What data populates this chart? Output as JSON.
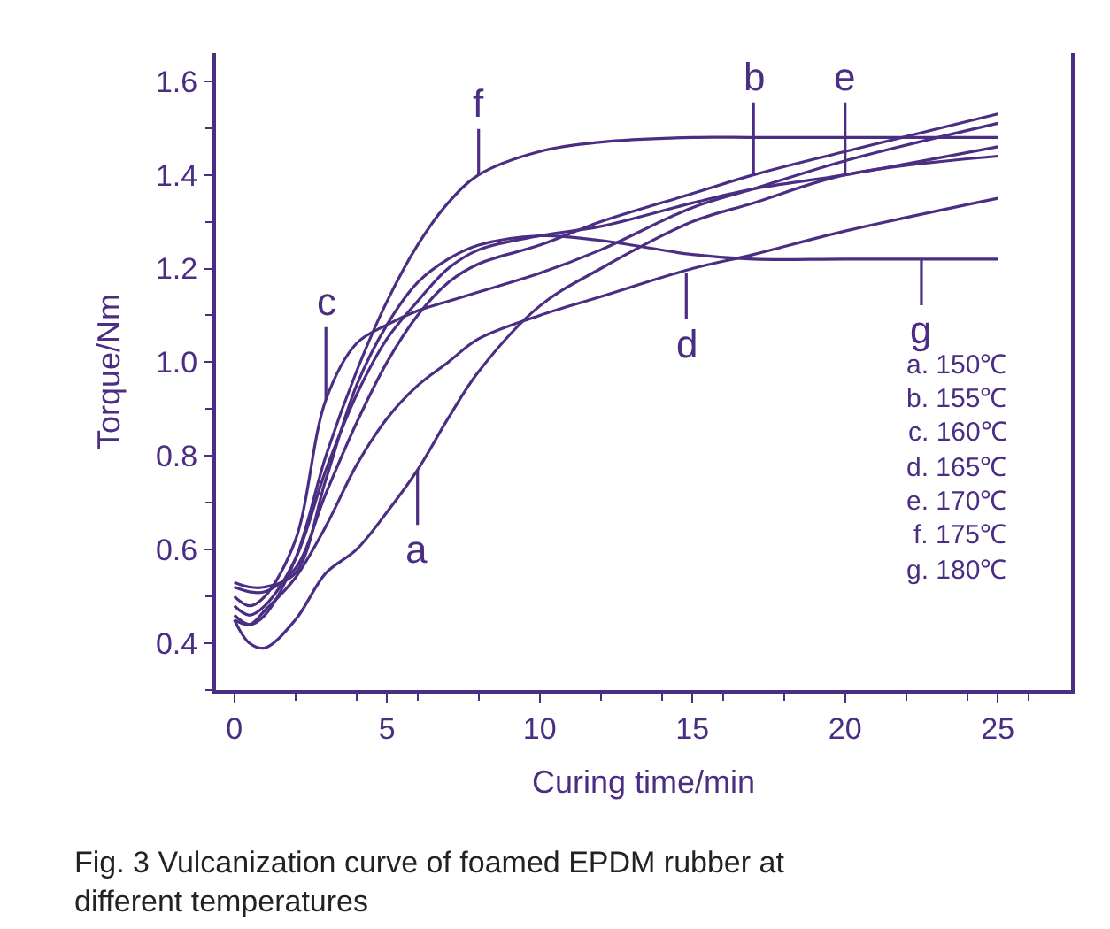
{
  "chart_data": {
    "type": "line",
    "xlabel": "Curing time/min",
    "ylabel": "Torque/Nm",
    "x": [
      0,
      0.5,
      1,
      2,
      3,
      4,
      5,
      6,
      7,
      8,
      10,
      12,
      15,
      17,
      20,
      25
    ],
    "series": [
      {
        "color": "#4b2e83",
        "values": [
          0.45,
          0.4,
          0.39,
          0.45,
          0.55,
          0.6,
          0.68,
          0.77,
          0.88,
          0.98,
          1.12,
          1.2,
          1.3,
          1.34,
          1.4,
          1.44
        ]
      },
      {
        "color": "#4b2e83",
        "values": [
          0.52,
          0.51,
          0.51,
          0.56,
          0.72,
          0.87,
          1.0,
          1.1,
          1.17,
          1.21,
          1.25,
          1.3,
          1.36,
          1.4,
          1.45,
          1.53
        ]
      },
      {
        "color": "#4b2e83",
        "values": [
          0.5,
          0.48,
          0.5,
          0.62,
          0.92,
          1.04,
          1.08,
          1.11,
          1.13,
          1.15,
          1.19,
          1.24,
          1.33,
          1.37,
          1.43,
          1.51
        ]
      },
      {
        "color": "#4b2e83",
        "values": [
          0.45,
          0.44,
          0.47,
          0.54,
          0.65,
          0.78,
          0.88,
          0.95,
          1.0,
          1.05,
          1.1,
          1.14,
          1.2,
          1.23,
          1.28,
          1.35
        ]
      },
      {
        "color": "#4b2e83",
        "values": [
          0.48,
          0.46,
          0.48,
          0.58,
          0.77,
          0.93,
          1.05,
          1.13,
          1.2,
          1.24,
          1.27,
          1.29,
          1.34,
          1.37,
          1.4,
          1.46
        ]
      },
      {
        "color": "#4b2e83",
        "values": [
          0.46,
          0.44,
          0.46,
          0.58,
          0.8,
          0.98,
          1.13,
          1.25,
          1.34,
          1.4,
          1.45,
          1.47,
          1.48,
          1.48,
          1.48,
          1.48
        ]
      },
      {
        "color": "#4b2e83",
        "values": [
          0.53,
          0.52,
          0.52,
          0.55,
          0.75,
          0.95,
          1.08,
          1.17,
          1.22,
          1.25,
          1.27,
          1.26,
          1.23,
          1.22,
          1.22,
          1.22
        ]
      }
    ],
    "xlim": [
      -0.6,
      27.4
    ],
    "xticks": [
      0,
      5,
      10,
      15,
      20,
      25
    ],
    "ylim": [
      0.3,
      1.66
    ],
    "yticks": [
      0.4,
      0.6,
      0.8,
      {
        "value": 1.0,
        "label": "1.0"
      },
      1.2,
      1.4,
      1.6
    ],
    "marker": "none",
    "line_style": "solid",
    "annotations": [
      {
        "text": "f",
        "x": 8,
        "y": 1.4
      },
      {
        "text": "c",
        "x": 3,
        "y": 0.92
      },
      {
        "text": "a",
        "x": 6,
        "y": 0.77
      },
      {
        "text": "b",
        "x": 17,
        "y": 1.4
      },
      {
        "text": "e",
        "x": 20,
        "y": 1.4
      },
      {
        "text": "d",
        "x": 14.8,
        "y": 1.19
      },
      {
        "text": "g",
        "x": 22.5,
        "y": 1.22
      },
      "a. 150℃",
      "b. 155℃",
      "c. 160℃",
      "d. 165℃",
      "e. 170℃",
      "f. 175℃",
      "g. 180℃",
      "Fig. 3 Vulcanization curve of foamed EPDM rubber at\ndifferent temperatures"
    ]
  }
}
